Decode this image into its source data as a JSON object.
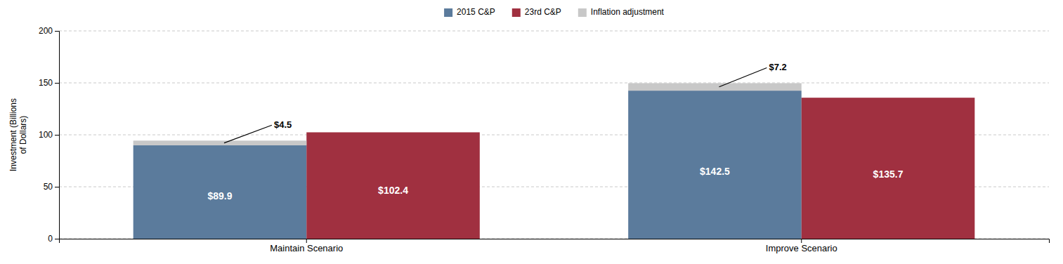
{
  "chart_data": {
    "type": "bar",
    "categories": [
      "Maintain Scenario",
      "Improve Scenario"
    ],
    "series": [
      {
        "name": "2015 C&P",
        "color": "#5b7b9c",
        "values": [
          89.9,
          142.5
        ],
        "value_labels": [
          "$89.9",
          "$142.5"
        ]
      },
      {
        "name": "23rd C&P",
        "color": "#a03040",
        "values": [
          102.4,
          135.7
        ],
        "value_labels": [
          "$102.4",
          "$135.7"
        ]
      },
      {
        "name": "Inflation adjustment",
        "color": "#c8c8c8",
        "values": [
          4.5,
          7.2
        ],
        "value_labels": [
          "$4.5",
          "$7.2"
        ],
        "stacked": true
      }
    ],
    "ylabel": "Investment (Billions\nof Dollars)",
    "ylim": [
      0,
      200
    ],
    "yticks": [
      0,
      50,
      100,
      150,
      200
    ],
    "grid": true,
    "legend": "top",
    "data_labels": true
  }
}
